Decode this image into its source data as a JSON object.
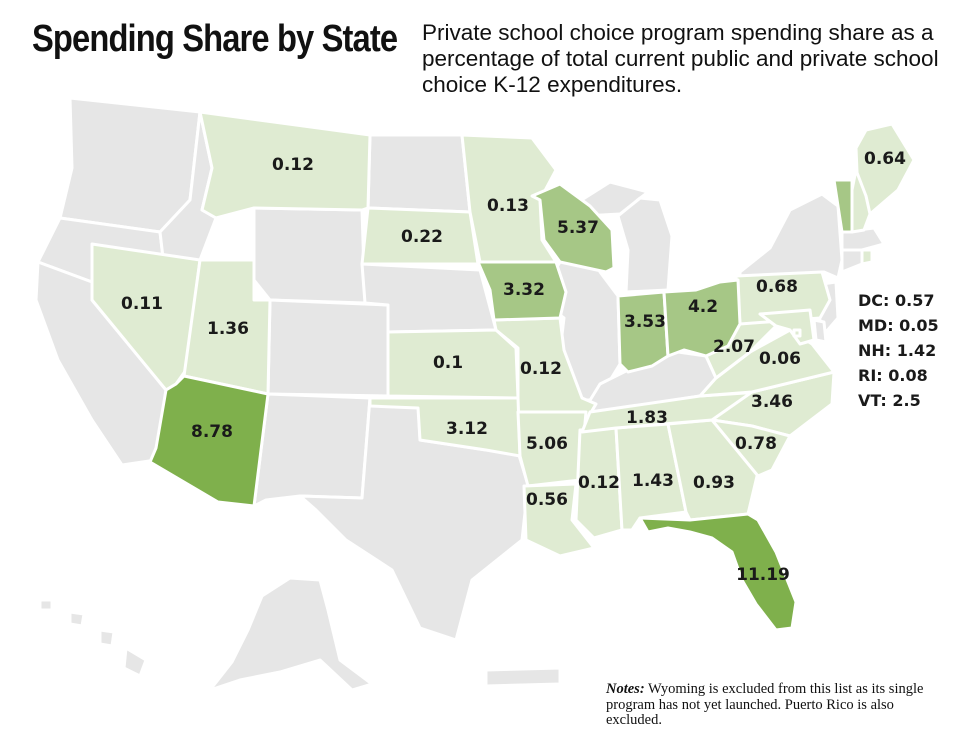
{
  "title": "Spending Share by State",
  "subtitle": "Private school choice program spending share as a percentage of total current public and private school choice K-12 expenditures.",
  "colors": {
    "none": "#e6e6e6",
    "low": "#dfebd2",
    "mid": "#a6c786",
    "high": "#7fb04c",
    "border": "#ffffff"
  },
  "states": [
    {
      "id": "MT",
      "value": "0.12",
      "tier": "low"
    },
    {
      "id": "SD",
      "value": "0.22",
      "tier": "low"
    },
    {
      "id": "MN",
      "value": "0.13",
      "tier": "low"
    },
    {
      "id": "WI",
      "value": "5.37",
      "tier": "mid"
    },
    {
      "id": "NV",
      "value": "0.11",
      "tier": "low"
    },
    {
      "id": "UT",
      "value": "1.36",
      "tier": "low"
    },
    {
      "id": "AZ",
      "value": "8.78",
      "tier": "high"
    },
    {
      "id": "IA",
      "value": "3.32",
      "tier": "mid"
    },
    {
      "id": "KS",
      "value": "0.1",
      "tier": "low"
    },
    {
      "id": "MO",
      "value": "0.12",
      "tier": "low"
    },
    {
      "id": "OK",
      "value": "3.12",
      "tier": "low"
    },
    {
      "id": "AR",
      "value": "5.06",
      "tier": "low"
    },
    {
      "id": "LA",
      "value": "0.56",
      "tier": "low"
    },
    {
      "id": "MS",
      "value": "0.12",
      "tier": "low"
    },
    {
      "id": "AL",
      "value": "1.43",
      "tier": "low"
    },
    {
      "id": "GA",
      "value": "0.93",
      "tier": "low"
    },
    {
      "id": "FL",
      "value": "11.19",
      "tier": "high"
    },
    {
      "id": "IN",
      "value": "3.53",
      "tier": "mid"
    },
    {
      "id": "OH",
      "value": "4.2",
      "tier": "mid"
    },
    {
      "id": "PA",
      "value": "0.68",
      "tier": "low"
    },
    {
      "id": "WV",
      "value": "2.07",
      "tier": "low"
    },
    {
      "id": "VA",
      "value": "0.06",
      "tier": "low"
    },
    {
      "id": "TN",
      "value": "1.83",
      "tier": "low"
    },
    {
      "id": "NC",
      "value": "3.46",
      "tier": "low"
    },
    {
      "id": "SC",
      "value": "0.78",
      "tier": "low"
    },
    {
      "id": "ME",
      "value": "0.64",
      "tier": "low"
    }
  ],
  "side_list": [
    {
      "label": "DC: 0.57"
    },
    {
      "label": "MD: 0.05"
    },
    {
      "label": "NH: 1.42"
    },
    {
      "label": "RI: 0.08"
    },
    {
      "label": "VT: 2.5"
    }
  ],
  "notes": {
    "label": "Notes:",
    "text": " Wyoming is excluded from this list as its single program has not yet launched. Puerto Rico is also excluded."
  }
}
